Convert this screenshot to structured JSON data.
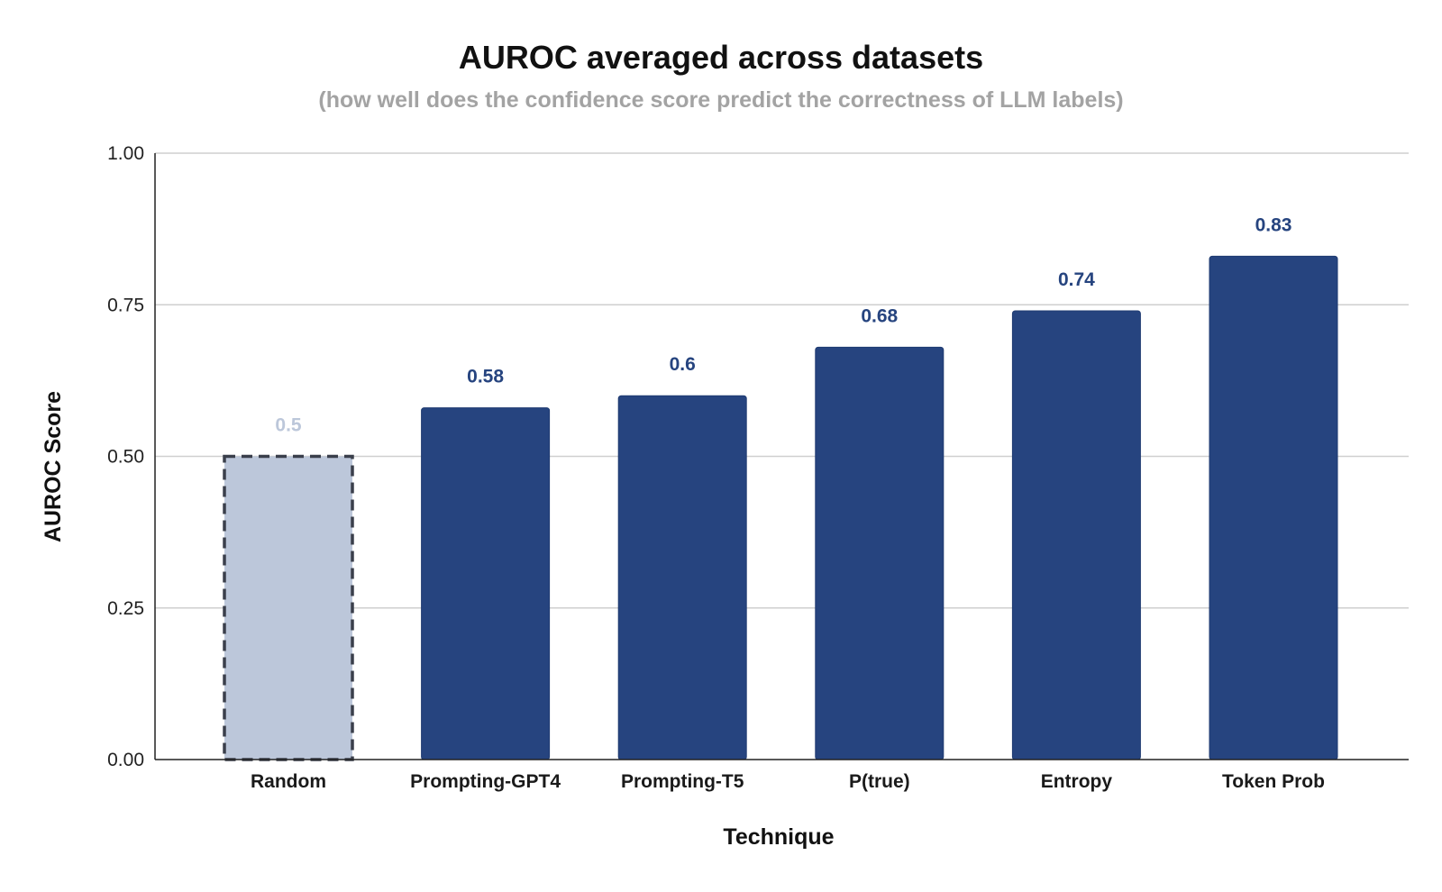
{
  "chart_data": {
    "type": "bar",
    "title": "AUROC averaged across datasets",
    "subtitle": "(how well does the confidence score predict the correctness of LLM labels)",
    "xlabel": "Technique",
    "ylabel": "AUROC Score",
    "categories": [
      "Random",
      "Prompting-GPT4",
      "Prompting-T5",
      "P(true)",
      "Entropy",
      "Token Prob"
    ],
    "values": [
      0.5,
      0.58,
      0.6,
      0.68,
      0.74,
      0.83
    ],
    "value_labels": [
      "0.5",
      "0.58",
      "0.6",
      "0.68",
      "0.74",
      "0.83"
    ],
    "ylim": [
      0,
      1
    ],
    "yticks": [
      0,
      0.25,
      0.5,
      0.75,
      1
    ],
    "ytick_labels": [
      "0.00",
      "0.25",
      "0.50",
      "0.75",
      "1.00"
    ],
    "grid": true,
    "legend": "none",
    "highlight": {
      "category": "Random",
      "style": "dashed-outline",
      "fill_color": "#bcc7da",
      "border_color": "#3a3f4b",
      "label_color": "#bcc7da"
    },
    "bar_color": "#26447f",
    "label_color": "#26447f",
    "grid_color": "#cfcfcf",
    "axis_color": "#222222"
  }
}
